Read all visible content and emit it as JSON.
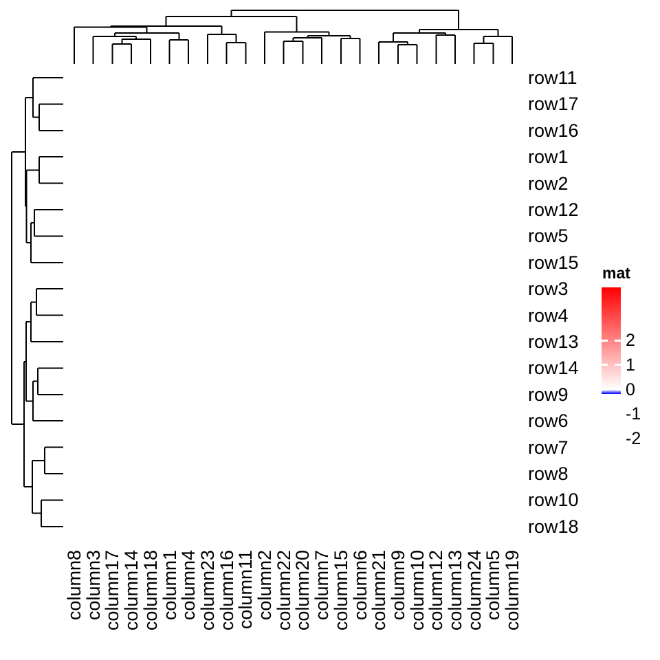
{
  "legend": {
    "title": "mat",
    "tick_labels": [
      "2",
      "1",
      "0",
      "-1",
      "-2"
    ],
    "tick_values": [
      2,
      1,
      0,
      -1,
      -2
    ],
    "color_max": "#FF0000",
    "color_mid": "#FFFFFF",
    "color_min": "#0000FF"
  },
  "chart_data": {
    "type": "heatmap",
    "legend_title": "mat",
    "row_labels": [
      "row11",
      "row17",
      "row16",
      "row1",
      "row2",
      "row12",
      "row5",
      "row15",
      "row3",
      "row4",
      "row13",
      "row14",
      "row9",
      "row6",
      "row7",
      "row8",
      "row10",
      "row18"
    ],
    "column_labels": [
      "column8",
      "column3",
      "column17",
      "column14",
      "column18",
      "column1",
      "column4",
      "column23",
      "column16",
      "column11",
      "column2",
      "column22",
      "column20",
      "column7",
      "column15",
      "column6",
      "column21",
      "column9",
      "column10",
      "column12",
      "column13",
      "column24",
      "column5",
      "column19"
    ],
    "colorscale": {
      "type": "diverging",
      "min": -2,
      "max": 2,
      "min_color": "#0000FF",
      "mid_color": "#FFFFFF",
      "max_color": "#FF0000",
      "ticks": [
        2,
        1,
        0,
        -1,
        -2
      ]
    },
    "cells": "heatmap body is rendered blank/white in the image (no cell colors visible)",
    "column_dendrogram": {
      "h": 15,
      "c": [
        {
          "h": 24,
          "c": [
            {
              "h": 38,
              "c": [
                {
                  "h": 39.5,
                  "c": [
                    0,
                    {
                      "h": 48,
                      "c": [
                        {
                          "h": 53,
                          "c": [
                            1,
                            {
                              "h": 57,
                              "c": [
                                {
                                  "h": 64,
                                  "c": [
                                    2,
                                    3
                                  ]
                                },
                                4
                              ]
                            }
                          ]
                        },
                        {
                          "h": 58,
                          "c": [
                            5,
                            6
                          ]
                        }
                      ]
                    }
                  ]
                },
                {
                  "h": 50,
                  "c": [
                    7,
                    {
                      "h": 62,
                      "c": [
                        8,
                        9
                      ]
                    }
                  ]
                }
              ]
            },
            {
              "h": 46.5,
              "c": [
                10,
                {
                  "h": 52,
                  "c": [
                    {
                      "h": 55,
                      "c": [
                        {
                          "h": 60,
                          "c": [
                            11,
                            12
                          ]
                        },
                        13
                      ]
                    },
                    {
                      "h": 56,
                      "c": [
                        14,
                        15
                      ]
                    }
                  ]
                }
              ]
            }
          ]
        },
        {
          "h": 43,
          "c": [
            {
              "h": 48,
              "c": [
                {
                  "h": 61,
                  "c": [
                    16,
                    {
                      "h": 65,
                      "c": [
                        17,
                        18
                      ]
                    }
                  ]
                },
                {
                  "h": 51,
                  "c": [
                    19,
                    20
                  ]
                }
              ]
            },
            {
              "h": 53,
              "c": [
                {
                  "h": 63,
                  "c": [
                    21,
                    22
                  ]
                },
                23
              ]
            }
          ]
        }
      ]
    },
    "row_dendrogram": {
      "h": 17,
      "c": [
        {
          "h": 37,
          "c": [
            {
              "h": 48,
              "c": [
                0,
                {
                  "h": 57,
                  "c": [
                    1,
                    2
                  ]
                }
              ]
            },
            {
              "h": 38.5,
              "c": [
                {
                  "h": 57,
                  "c": [
                    3,
                    4
                  ]
                },
                {
                  "h": 45,
                  "c": [
                    {
                      "h": 50,
                      "c": [
                        5,
                        6
                      ]
                    },
                    7
                  ]
                }
              ]
            }
          ]
        },
        {
          "h": 35,
          "c": [
            {
              "h": 38,
              "c": [
                {
                  "h": 45,
                  "c": [
                    {
                      "h": 53,
                      "c": [
                        8,
                        9
                      ]
                    },
                    10
                  ]
                },
                {
                  "h": 48,
                  "c": [
                    {
                      "h": 55,
                      "c": [
                        11,
                        12
                      ]
                    },
                    13
                  ]
                }
              ]
            },
            {
              "h": 47,
              "c": [
                {
                  "h": 65,
                  "c": [
                    14,
                    15
                  ]
                },
                {
                  "h": 60,
                  "c": [
                    16,
                    17
                  ]
                }
              ]
            }
          ]
        }
      ]
    }
  }
}
